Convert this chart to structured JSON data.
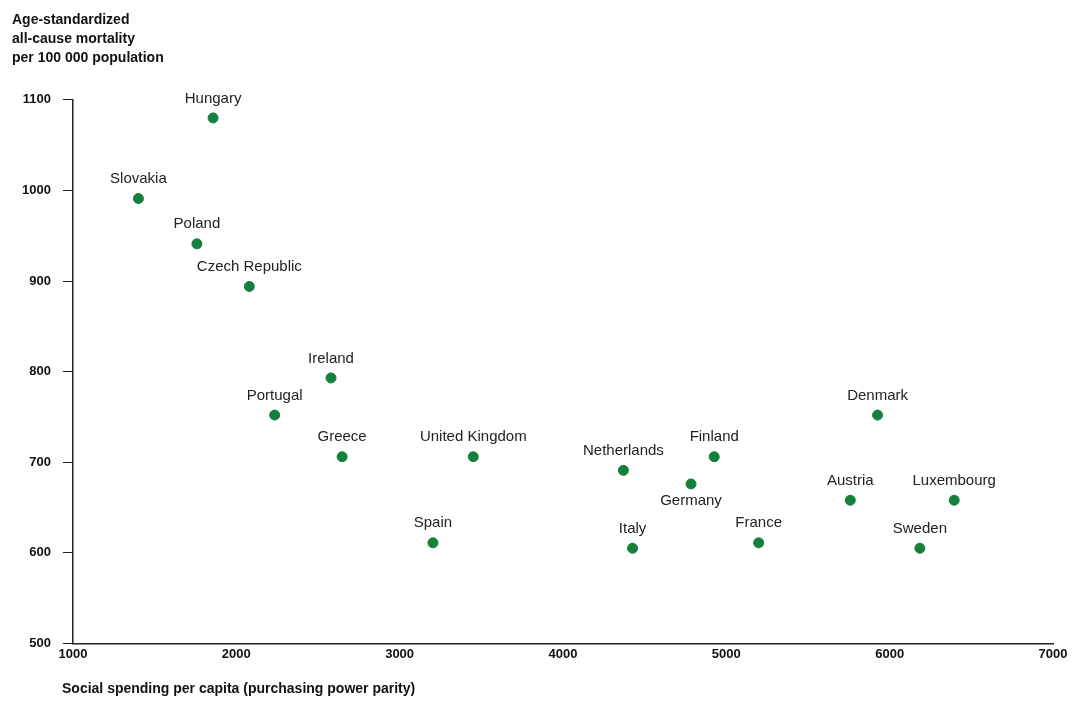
{
  "chart_data": {
    "type": "scatter",
    "ylabel": "Age-standardized\nall-cause mortality\nper 100 000 population",
    "xlabel": "Social spending per capita (purchasing power parity)",
    "xlim": [
      1000,
      7000
    ],
    "xticks": [
      1000,
      2000,
      3000,
      4000,
      5000,
      6000,
      7000
    ],
    "ylim": [
      500,
      1100
    ],
    "yticks": [
      500,
      600,
      700,
      800,
      900,
      1000,
      1100
    ],
    "grid": false,
    "legend": false,
    "marker": "circle",
    "series": [
      {
        "color": "#15803d",
        "x": [
          1858,
          1401,
          1759,
          2080,
          2580,
          2235,
          2648,
          3451,
          3204,
          4370,
          4426,
          4784,
          4926,
          5198,
          5926,
          5759,
          6395,
          6185
        ],
        "values": [
          1080,
          991,
          941,
          894,
          793,
          752,
          706,
          706,
          611,
          691,
          605,
          676,
          706,
          611,
          752,
          658,
          658,
          605
        ]
      }
    ],
    "annotations": [
      {
        "text": "Hungary",
        "x": 1858,
        "y": 1080
      },
      {
        "text": "Slovakia",
        "x": 1401,
        "y": 991
      },
      {
        "text": "Poland",
        "x": 1759,
        "y": 941
      },
      {
        "text": "Czech Republic",
        "x": 2080,
        "y": 894
      },
      {
        "text": "Ireland",
        "x": 2580,
        "y": 793
      },
      {
        "text": "Portugal",
        "x": 2235,
        "y": 752
      },
      {
        "text": "Greece",
        "x": 2648,
        "y": 706
      },
      {
        "text": "United Kingdom",
        "x": 3451,
        "y": 706
      },
      {
        "text": "Spain",
        "x": 3204,
        "y": 611
      },
      {
        "text": "Netherlands",
        "x": 4370,
        "y": 691
      },
      {
        "text": "Italy",
        "x": 4426,
        "y": 605
      },
      {
        "text": "Germany",
        "x": 4784,
        "y": 676
      },
      {
        "text": "Finland",
        "x": 4926,
        "y": 706
      },
      {
        "text": "France",
        "x": 5198,
        "y": 611
      },
      {
        "text": "Denmark",
        "x": 5926,
        "y": 752
      },
      {
        "text": "Austria",
        "x": 5759,
        "y": 658
      },
      {
        "text": "Luxembourg",
        "x": 6395,
        "y": 658
      },
      {
        "text": "Sweden",
        "x": 6185,
        "y": 605
      }
    ]
  }
}
